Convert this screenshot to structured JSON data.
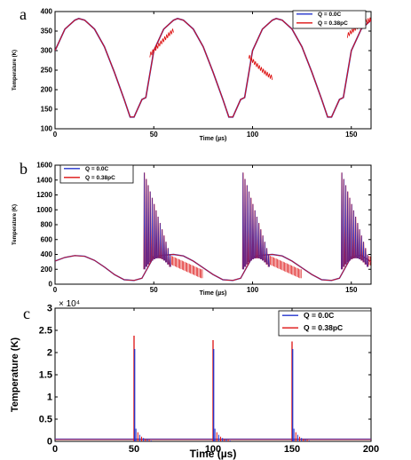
{
  "chart_data": [
    {
      "panel": "a",
      "type": "line",
      "xlabel": "Time (µs)",
      "ylabel": "Temperature (K)",
      "xlim": [
        0,
        160
      ],
      "ylim": [
        100,
        400
      ],
      "xticks": [
        "0",
        "50",
        "100",
        "150"
      ],
      "yticks": [
        "100",
        "150",
        "200",
        "250",
        "300",
        "350",
        "400"
      ],
      "legend_position": "top-right",
      "series": [
        {
          "name": "Q = 0.0C",
          "color": "#2233cc"
        },
        {
          "name": "Q = 0.38pC",
          "color": "#dd1111"
        }
      ],
      "x": [
        0,
        5,
        10,
        12,
        15,
        20,
        25,
        30,
        35,
        38,
        40,
        44,
        46,
        48,
        50,
        55,
        60,
        62,
        65,
        70,
        75,
        80,
        85,
        88,
        90,
        94,
        96,
        98,
        100,
        105,
        110,
        112,
        115,
        120,
        125,
        130,
        135,
        138,
        140,
        144,
        146,
        150,
        155,
        160
      ],
      "y": [
        300,
        355,
        378,
        382,
        378,
        355,
        310,
        245,
        175,
        130,
        130,
        175,
        180,
        240,
        300,
        355,
        378,
        382,
        378,
        355,
        310,
        245,
        175,
        130,
        130,
        175,
        180,
        240,
        300,
        355,
        378,
        382,
        378,
        355,
        310,
        245,
        175,
        130,
        130,
        175,
        180,
        300,
        355,
        378
      ]
    },
    {
      "panel": "b",
      "type": "line",
      "xlabel": "Time (µs)",
      "ylabel": "Temperature (K)",
      "xlim": [
        0,
        160
      ],
      "ylim": [
        0,
        1600
      ],
      "xticks": [
        "0",
        "50",
        "100",
        "150"
      ],
      "yticks": [
        "0",
        "200",
        "400",
        "600",
        "800",
        "1000",
        "1200",
        "1400",
        "1600"
      ],
      "legend_position": "top-left",
      "series": [
        {
          "name": "Q = 0.0C",
          "color": "#2233cc"
        },
        {
          "name": "Q = 0.38pC",
          "color": "#dd1111"
        }
      ],
      "x": [
        0,
        5,
        10,
        15,
        20,
        25,
        30,
        35,
        40,
        44,
        50,
        55,
        60,
        65,
        70,
        75,
        80,
        85,
        90,
        94,
        100,
        105,
        110,
        115,
        120,
        125,
        130,
        135,
        140,
        144,
        150,
        155,
        160
      ],
      "y": [
        310,
        360,
        385,
        375,
        320,
        230,
        130,
        60,
        50,
        80,
        370,
        390,
        400,
        380,
        310,
        220,
        130,
        60,
        50,
        80,
        370,
        390,
        400,
        380,
        310,
        220,
        130,
        60,
        50,
        80,
        370,
        390,
        300
      ],
      "spikes": [
        {
          "x": 45,
          "peak": 1500,
          "decay_to": 400,
          "count": 14
        },
        {
          "x": 95,
          "peak": 1500,
          "decay_to": 400,
          "count": 14
        },
        {
          "x": 145,
          "peak": 1500,
          "decay_to": 400,
          "count": 14
        }
      ]
    },
    {
      "panel": "c",
      "type": "line",
      "xlabel": "Time (µs)",
      "ylabel": "Temperature (K)",
      "y_multiplier": "× 10⁴",
      "xlim": [
        0,
        200
      ],
      "ylim": [
        0,
        3
      ],
      "xticks": [
        "0",
        "50",
        "100",
        "150",
        "200"
      ],
      "yticks": [
        "0",
        "0.5",
        "1",
        "1.5",
        "2",
        "2.5",
        "3"
      ],
      "legend_position": "top-right",
      "series": [
        {
          "name": "Q = 0.0C",
          "color": "#2233cc"
        },
        {
          "name": "Q = 0.38pC",
          "color": "#dd1111"
        }
      ],
      "spikes": [
        {
          "x": 50,
          "peak_blue": 2.08,
          "peak_red": 2.38
        },
        {
          "x": 100,
          "peak_blue": 2.08,
          "peak_red": 2.28
        },
        {
          "x": 150,
          "peak_blue": 2.08,
          "peak_red": 2.25
        }
      ]
    }
  ]
}
